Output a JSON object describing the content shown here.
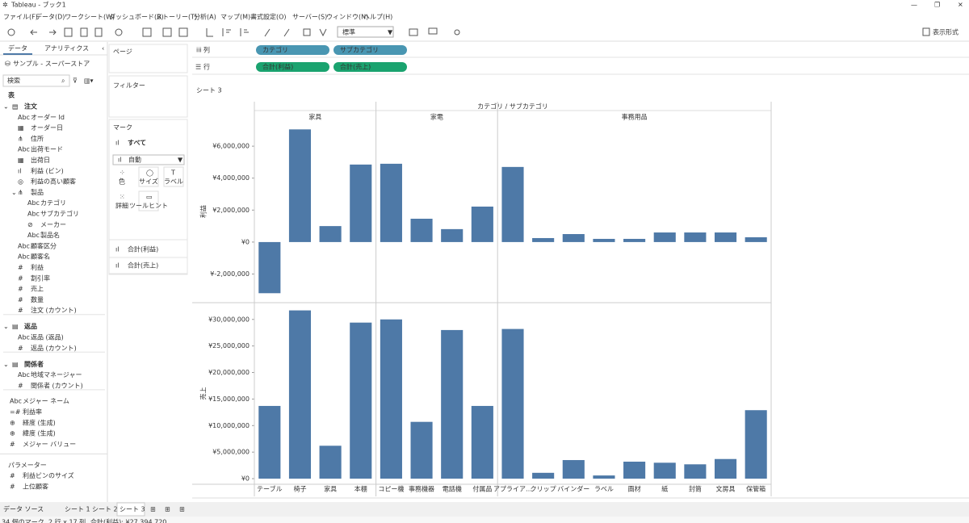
{
  "window": {
    "title": "Tableau - ブック1"
  },
  "menu": [
    "ファイル(F)",
    "データ(D)",
    "ワークシート(W)",
    "ダッシュボード(B)",
    "ストーリー(T)",
    "分析(A)",
    "マップ(M)",
    "書式設定(O)",
    "サーバー(S)",
    "ウィンドウ(N)",
    "ヘルプ(H)"
  ],
  "toolbar": {
    "style_select": "標準",
    "show_me": "表示形式"
  },
  "data_pane": {
    "tabs": [
      "データ",
      "アナリティクス"
    ],
    "source": "サンプル - スーパーストア",
    "search": "検索",
    "tables_heading": "表",
    "sections": [
      {
        "name": "注文",
        "fields": [
          {
            "icon": "Abc",
            "label": "オーダー Id"
          },
          {
            "icon": "▦",
            "label": "オーダー日"
          },
          {
            "icon": "⋔",
            "label": "住所"
          },
          {
            "icon": "Abc",
            "label": "出荷モード"
          },
          {
            "icon": "▦",
            "label": "出荷日"
          },
          {
            "icon": "ıl",
            "label": "利益 (ビン)"
          },
          {
            "icon": "◎",
            "label": "利益の高い顧客"
          },
          {
            "icon": "⋔",
            "label": "製品",
            "children": [
              {
                "icon": "Abc",
                "label": "カテゴリ"
              },
              {
                "icon": "Abc",
                "label": "サブカテゴリ"
              },
              {
                "icon": "⊘",
                "label": "メーカー"
              },
              {
                "icon": "Abc",
                "label": "製品名"
              }
            ]
          },
          {
            "icon": "Abc",
            "label": "顧客区分"
          },
          {
            "icon": "Abc",
            "label": "顧客名"
          },
          {
            "icon": "#",
            "label": "利益"
          },
          {
            "icon": "#",
            "label": "割引率"
          },
          {
            "icon": "#",
            "label": "売上"
          },
          {
            "icon": "#",
            "label": "数量"
          },
          {
            "icon": "#",
            "label": "注文 (カウント)"
          }
        ]
      },
      {
        "name": "返品",
        "fields": [
          {
            "icon": "Abc",
            "label": "返品 (返品)"
          },
          {
            "icon": "#",
            "label": "返品 (カウント)"
          }
        ]
      },
      {
        "name": "関係者",
        "fields": [
          {
            "icon": "Abc",
            "label": "地域マネージャー"
          },
          {
            "icon": "#",
            "label": "関係者 (カウント)"
          }
        ]
      }
    ],
    "fields": [
      {
        "icon": "Abc",
        "label": "メジャー ネーム"
      },
      {
        "icon": "=#",
        "label": "利益率"
      },
      {
        "icon": "⊕",
        "label": "経度 (生成)"
      },
      {
        "icon": "⊕",
        "label": "緯度 (生成)"
      },
      {
        "icon": "#",
        "label": "メジャー バリュー"
      }
    ],
    "parameters": {
      "name": "パラメーター",
      "fields": [
        {
          "icon": "#",
          "label": "利益ビンのサイズ"
        },
        {
          "icon": "#",
          "label": "上位顧客"
        }
      ]
    }
  },
  "shelves": {
    "pages": "ページ",
    "filters": "フィルター",
    "columns": {
      "label": "列",
      "pills": [
        "カテゴリ",
        "サブカテゴリ"
      ]
    },
    "rows": {
      "label": "行",
      "pills": [
        "合計(利益)",
        "合計(売上)"
      ]
    }
  },
  "marks_card": {
    "title": "マーク",
    "all": "すべて",
    "mark_type": "自動",
    "buttons": [
      "色",
      "サイズ",
      "ラベル",
      "詳細",
      "ツールヒント"
    ],
    "measures": [
      "合計(利益)",
      "合計(売上)"
    ]
  },
  "sheet_title": "シート 3",
  "chart_data": {
    "type": "bar",
    "header": "カテゴリ / サブカテゴリ",
    "color": "#4e79a7",
    "groups": [
      {
        "name": "家具",
        "categories": [
          "テーブル",
          "椅子",
          "家具",
          "本棚"
        ]
      },
      {
        "name": "家電",
        "categories": [
          "コピー機",
          "事務機器",
          "電話機",
          "付属品"
        ]
      },
      {
        "name": "事務用品",
        "categories": [
          "アプライア…",
          "クリップ",
          "バインダー",
          "ラベル",
          "画材",
          "紙",
          "封筒",
          "文房具",
          "保管箱"
        ]
      }
    ],
    "panes": [
      {
        "ylabel": "利益",
        "ylim": [
          -3640000,
          7470000
        ],
        "yticks": [
          {
            "value": -2000000,
            "label": "¥-2,000,000"
          },
          {
            "value": 0,
            "label": "¥0"
          },
          {
            "value": 2000000,
            "label": "¥2,000,000"
          },
          {
            "value": 4000000,
            "label": "¥4,000,000"
          },
          {
            "value": 6000000,
            "label": "¥6,000,000"
          }
        ],
        "values": [
          -3200000,
          7050000,
          1000000,
          4850000,
          4900000,
          1460000,
          810000,
          2220000,
          4700000,
          250000,
          500000,
          200000,
          200000,
          600000,
          600000,
          600000,
          300000
        ]
      },
      {
        "ylabel": "売上",
        "ylim": [
          -600000,
          32700000
        ],
        "yticks": [
          {
            "value": 0,
            "label": "¥0"
          },
          {
            "value": 5000000,
            "label": "¥5,000,000"
          },
          {
            "value": 10000000,
            "label": "¥10,000,000"
          },
          {
            "value": 15000000,
            "label": "¥15,000,000"
          },
          {
            "value": 20000000,
            "label": "¥20,000,000"
          },
          {
            "value": 25000000,
            "label": "¥25,000,000"
          },
          {
            "value": 30000000,
            "label": "¥30,000,000"
          }
        ],
        "values": [
          13700000,
          31700000,
          6200000,
          29400000,
          30000000,
          10700000,
          28000000,
          13700000,
          28200000,
          1100000,
          3500000,
          600000,
          3200000,
          3000000,
          2700000,
          3700000,
          12900000
        ]
      }
    ]
  },
  "tabs": [
    "データ ソース",
    "シート 1",
    "シート 2",
    "シート 3"
  ],
  "status": [
    "34 個のマーク",
    "2 行 x 17 列",
    "合計(利益): ¥27,394,720"
  ]
}
